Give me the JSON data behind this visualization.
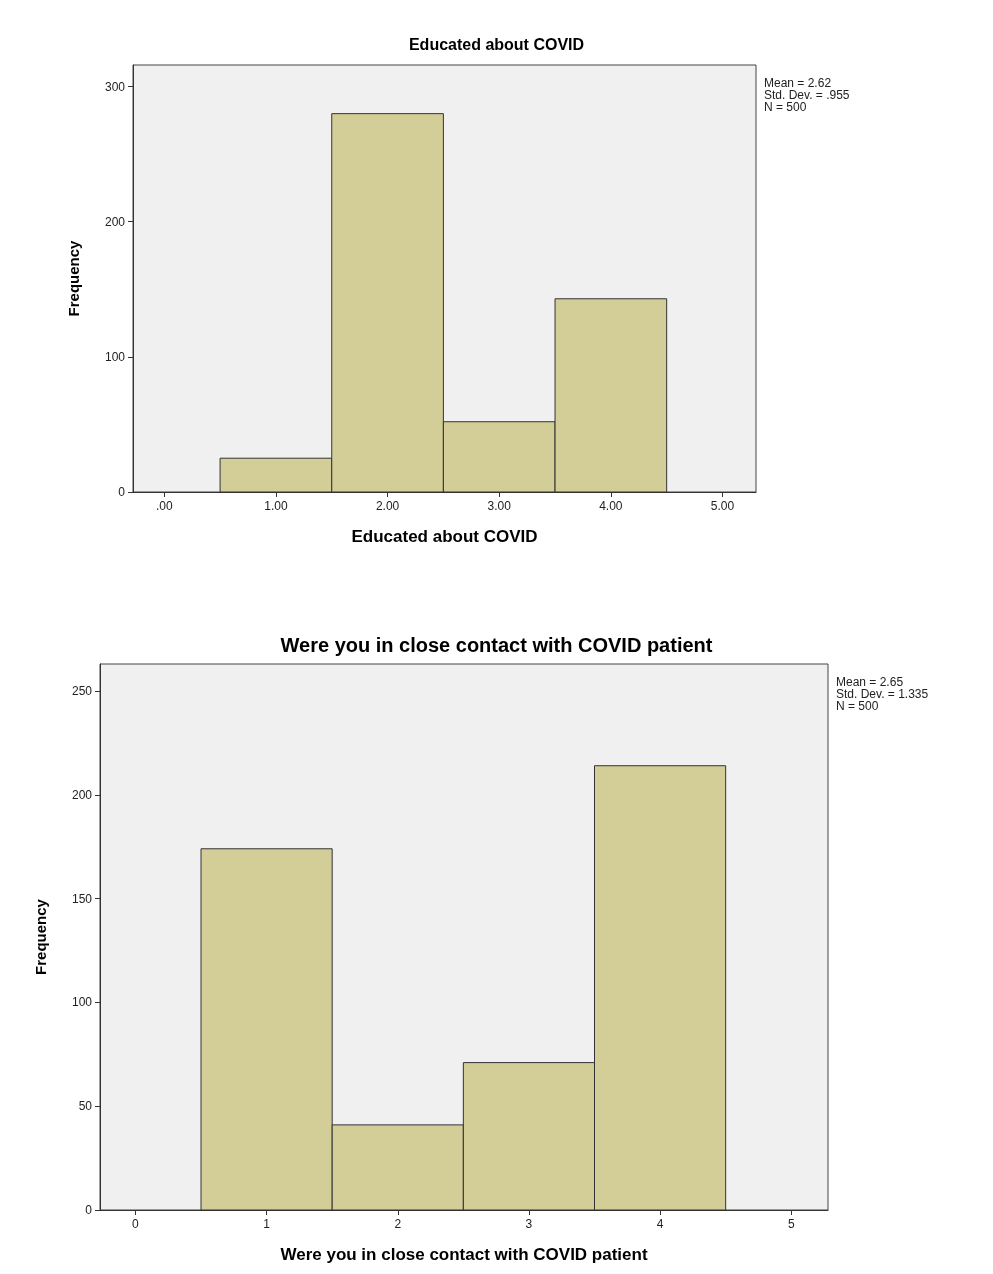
{
  "chart_data": [
    {
      "type": "histogram",
      "title": "Educated about COVID",
      "xlabel": "Educated about COVID",
      "ylabel": "Frequency",
      "bins": [
        0.5,
        1.5,
        2.5,
        3.5,
        4.5
      ],
      "values": [
        25,
        280,
        52,
        143
      ],
      "color": "#d3cd98",
      "xlim": [
        -0.28,
        5.3
      ],
      "xticks": [
        {
          "value": 0,
          "label": ".00"
        },
        {
          "value": 1,
          "label": "1.00"
        },
        {
          "value": 2,
          "label": "2.00"
        },
        {
          "value": 3,
          "label": "3.00"
        },
        {
          "value": 4,
          "label": "4.00"
        },
        {
          "value": 5,
          "label": "5.00"
        }
      ],
      "ylim": [
        0,
        316
      ],
      "yticks": [
        0,
        100,
        200,
        300
      ],
      "grid": false,
      "annotations": [
        "Mean = 2.62",
        "Std. Dev. = .955",
        "N = 500"
      ]
    },
    {
      "type": "histogram",
      "title": "Were you in close contact with COVID patient",
      "xlabel": "Were you in close contact with COVID patient",
      "ylabel": "Frequency",
      "bins": [
        0.5,
        1.5,
        2.5,
        3.5,
        4.5
      ],
      "values": [
        174,
        41,
        71,
        214
      ],
      "color": "#d3cd98",
      "xlim": [
        -0.27,
        5.28
      ],
      "xticks": [
        0,
        1,
        2,
        3,
        4,
        5
      ],
      "ylim": [
        0,
        263
      ],
      "yticks": [
        0,
        50,
        100,
        150,
        200,
        250
      ],
      "grid": false,
      "annotations": [
        "Mean = 2.65",
        "Std. Dev. = 1.335",
        "N = 500"
      ]
    }
  ]
}
